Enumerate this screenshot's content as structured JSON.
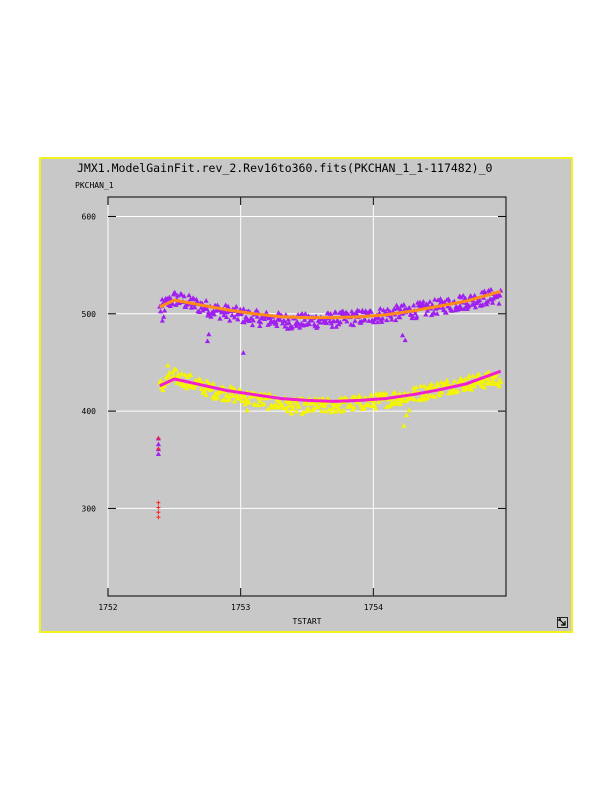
{
  "window": {
    "title": "JMX1.ModelGainFit.rev_2.Rev16to360.fits(PKCHAN_1_1-117482)_0",
    "resize_icon": "resize-corner-icon",
    "border_color": "#f2f220",
    "background": "#c8c8c8"
  },
  "chart_data": {
    "type": "scatter",
    "title": "JMX1.ModelGainFit.rev_2.Rev16to360.fits(PKCHAN_1_1-117482)_0",
    "xlabel": "TSTART",
    "ylabel": "PKCHAN_1",
    "xlim": [
      1752.0,
      1755.0
    ],
    "ylim": [
      210,
      620
    ],
    "xticks": [
      "1752",
      "1753",
      "1754"
    ],
    "yticks": [
      "600",
      "500",
      "400",
      "300"
    ],
    "grid": true,
    "series": [
      {
        "marker": "triangle",
        "color": "#a020f0",
        "x_range": [
          1752.39,
          1754.96
        ],
        "center_y": [
          [
            1752.39,
            505
          ],
          [
            1752.5,
            516
          ],
          [
            1752.8,
            504
          ],
          [
            1753.1,
            496
          ],
          [
            1753.4,
            492
          ],
          [
            1753.7,
            494
          ],
          [
            1754.0,
            498
          ],
          [
            1754.3,
            503
          ],
          [
            1754.6,
            510
          ],
          [
            1754.9,
            518
          ]
        ],
        "outliers": [
          [
            1752.75,
            472
          ],
          [
            1752.76,
            479
          ],
          [
            1753.02,
            460
          ],
          [
            1753.38,
            485
          ],
          [
            1754.22,
            478
          ],
          [
            1754.24,
            473
          ],
          [
            1754.65,
            518
          ],
          [
            1754.7,
            508
          ],
          [
            1752.41,
            493
          ],
          [
            1752.42,
            497
          ]
        ],
        "isolated": [
          [
            1752.38,
            372
          ],
          [
            1752.38,
            366
          ],
          [
            1752.38,
            361
          ],
          [
            1752.38,
            356
          ]
        ]
      },
      {
        "marker": "triangle",
        "color": "#f5f500",
        "x_range": [
          1752.39,
          1754.96
        ],
        "center_y": [
          [
            1752.39,
            425
          ],
          [
            1752.5,
            436
          ],
          [
            1752.8,
            421
          ],
          [
            1753.1,
            413
          ],
          [
            1753.4,
            405
          ],
          [
            1753.7,
            406
          ],
          [
            1754.0,
            410
          ],
          [
            1754.3,
            417
          ],
          [
            1754.6,
            427
          ],
          [
            1754.9,
            433
          ]
        ],
        "outliers": [
          [
            1754.23,
            385
          ],
          [
            1754.25,
            396
          ],
          [
            1754.27,
            401
          ],
          [
            1753.05,
            401
          ],
          [
            1753.5,
            400
          ],
          [
            1752.45,
            447
          ]
        ],
        "isolated": []
      },
      {
        "marker": "plus",
        "color": "#ff2020",
        "x": [
          1752.38,
          1752.38,
          1752.38,
          1752.38
        ],
        "y": [
          306,
          301,
          296,
          291
        ]
      },
      {
        "marker": "line",
        "color": "#ff8c1a",
        "x": [
          1752.39,
          1752.5,
          1752.7,
          1752.9,
          1753.1,
          1753.3,
          1753.5,
          1753.7,
          1753.9,
          1754.1,
          1754.3,
          1754.5,
          1754.7,
          1754.96
        ],
        "y": [
          507,
          514,
          509,
          504,
          500,
          497,
          496,
          496,
          497,
          499,
          503,
          508,
          513,
          523
        ]
      },
      {
        "marker": "line",
        "color": "#f020d0",
        "x": [
          1752.39,
          1752.5,
          1752.7,
          1752.9,
          1753.1,
          1753.3,
          1753.5,
          1753.7,
          1753.9,
          1754.1,
          1754.3,
          1754.5,
          1754.7,
          1754.96
        ],
        "y": [
          426,
          433,
          427,
          421,
          417,
          413,
          411,
          410,
          411,
          413,
          417,
          422,
          428,
          441
        ]
      }
    ]
  }
}
